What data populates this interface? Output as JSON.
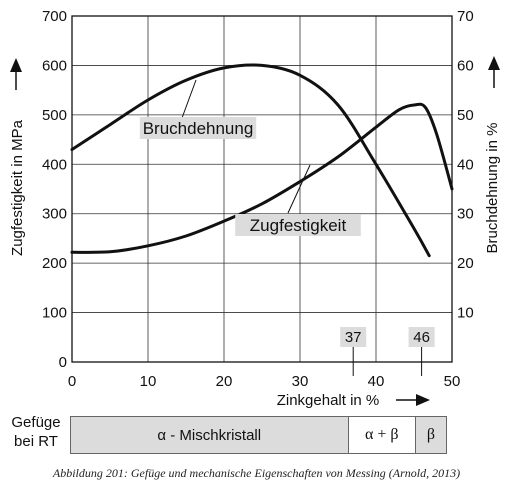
{
  "chart_data": {
    "type": "line",
    "xlabel": "Zinkgehalt in %",
    "ylabel_left": "Zugfestigkeit in MPa",
    "ylabel_right": "Bruchdehnung in %",
    "xlim": [
      0,
      50
    ],
    "ylim_left": [
      0,
      700
    ],
    "ylim_right": [
      0,
      70
    ],
    "x_ticks": [
      "0",
      "10",
      "20",
      "30",
      "40",
      "50"
    ],
    "y_ticks_left": [
      "0",
      "100",
      "200",
      "300",
      "400",
      "500",
      "600",
      "700"
    ],
    "y_ticks_right": [
      "10",
      "20",
      "30",
      "40",
      "50",
      "60",
      "70"
    ],
    "grid": true,
    "series": [
      {
        "name": "Bruchdehnung",
        "axis": "right",
        "x": [
          0,
          5,
          10,
          15,
          20,
          25,
          30,
          35,
          40,
          45,
          47
        ],
        "y": [
          43,
          48,
          53,
          57,
          59.5,
          60,
          58,
          52,
          40,
          27,
          21.5
        ]
      },
      {
        "name": "Zugfestigkeit",
        "axis": "left",
        "x": [
          0,
          5,
          10,
          15,
          20,
          25,
          30,
          35,
          40,
          43,
          45,
          46.5,
          48,
          50
        ],
        "y": [
          222,
          223,
          235,
          255,
          285,
          320,
          365,
          415,
          475,
          510,
          520,
          515,
          460,
          350
        ]
      }
    ],
    "markers": [
      {
        "x": 37,
        "label": "37"
      },
      {
        "x": 46,
        "label": "46"
      }
    ]
  },
  "phase_table": {
    "caption_line1": "Gefüge",
    "caption_line2": "bei RT",
    "segments": [
      {
        "label": "α - Mischkristall",
        "from": 0,
        "to": 37,
        "color": "#dcdcdc"
      },
      {
        "label": "α + β",
        "from": 37,
        "to": 46,
        "color": "#ffffff"
      },
      {
        "label": "β",
        "from": 46,
        "to": 50,
        "color": "#dcdcdc"
      }
    ]
  },
  "figure_caption": "Abbildung 201: Gefüge und mechanische Eigenschaften von Messing (Arnold, 2013)",
  "colors": {
    "curve": "#111111",
    "grid": "#333333",
    "label_box": "#dcdcdc"
  }
}
